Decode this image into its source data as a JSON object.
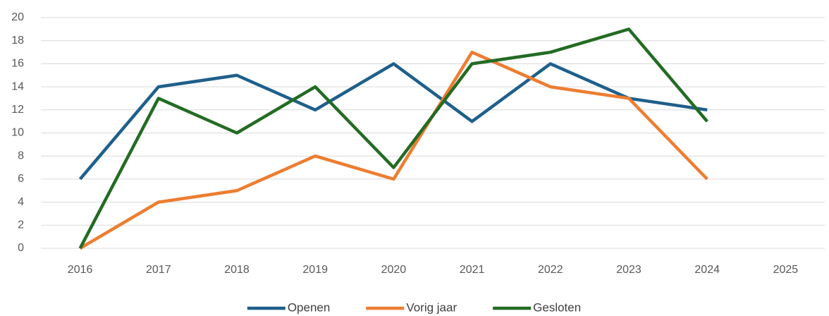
{
  "chart_data": {
    "type": "line",
    "categories": [
      "2016",
      "2017",
      "2018",
      "2019",
      "2020",
      "2021",
      "2022",
      "2023",
      "2024",
      "2025"
    ],
    "series": [
      {
        "name": "Openen",
        "color": "#1f5f8b",
        "values": [
          6,
          14,
          15,
          12,
          16,
          11,
          16,
          13,
          12,
          null
        ]
      },
      {
        "name": "Vorig jaar",
        "color": "#ed7d31",
        "values": [
          0,
          4,
          5,
          8,
          6,
          17,
          14,
          13,
          6,
          null
        ]
      },
      {
        "name": "Gesloten",
        "color": "#246b24",
        "values": [
          0,
          13,
          10,
          14,
          7,
          16,
          17,
          19,
          11,
          null
        ]
      }
    ],
    "ylim": [
      0,
      20
    ],
    "yticks": [
      0,
      2,
      4,
      6,
      8,
      10,
      12,
      14,
      16,
      18,
      20
    ],
    "grid": true,
    "legend": "bottom"
  }
}
